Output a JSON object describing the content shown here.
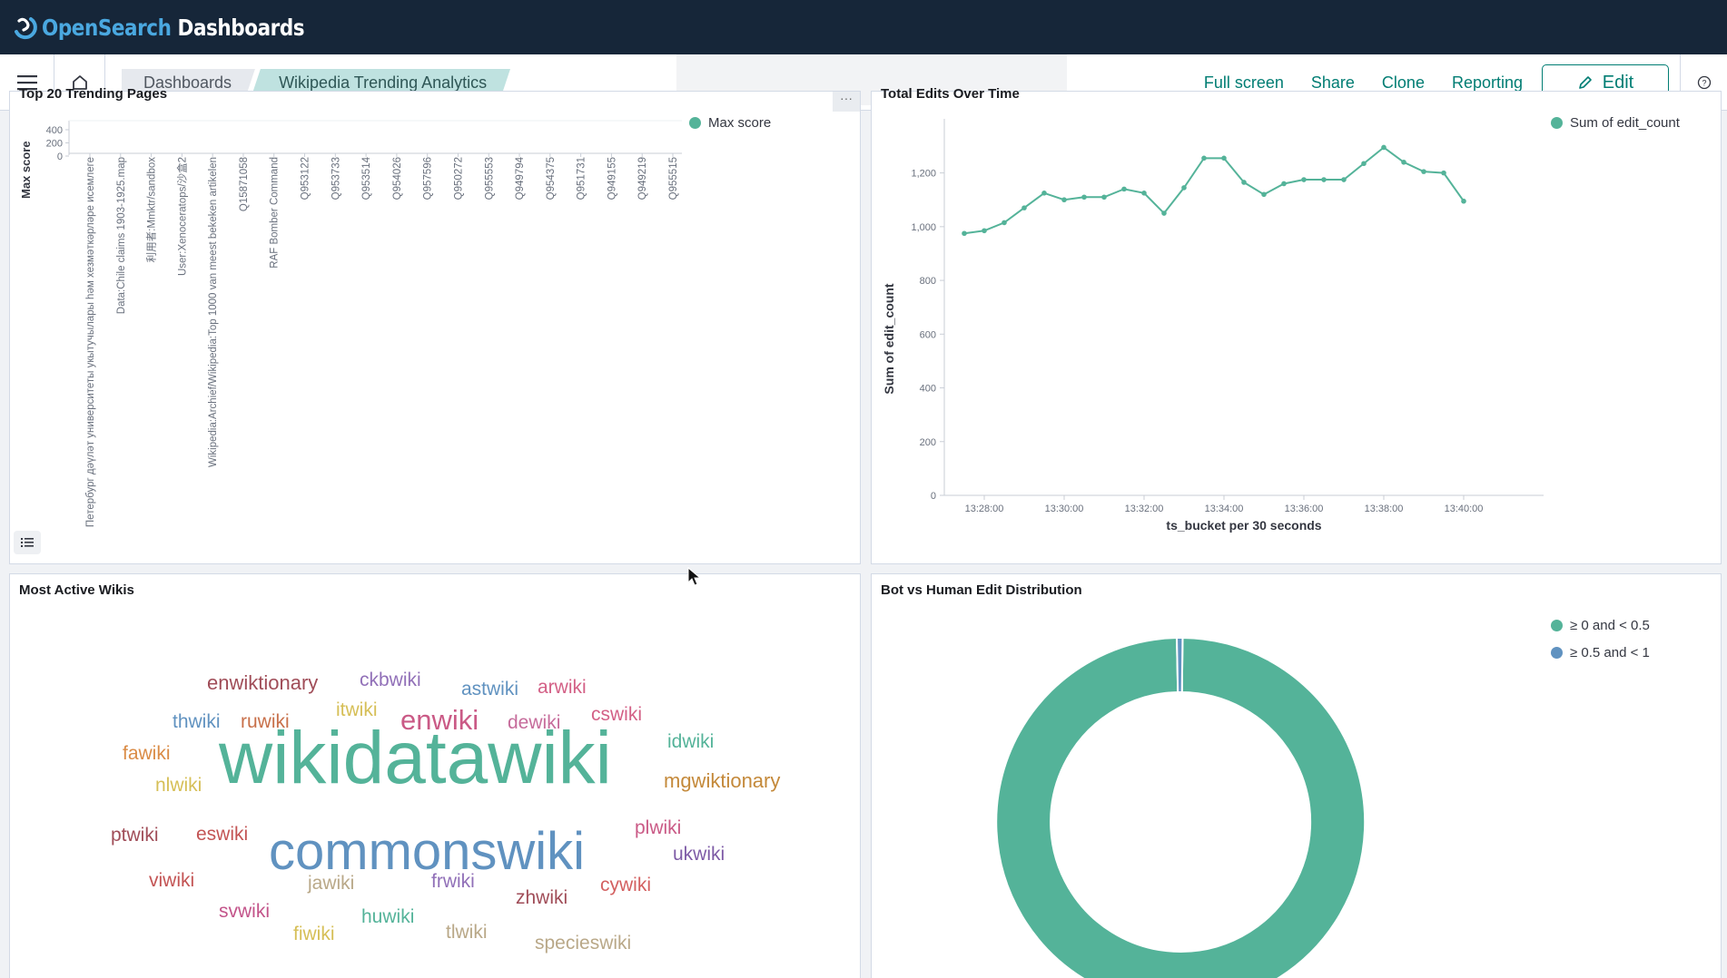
{
  "app": {
    "name_part1": "Open",
    "name_part2": "Search",
    "name_part3": " Dashboards",
    "logo_icon": "opensearch-logo"
  },
  "nav": {
    "menu_icon": "hamburger-menu-icon",
    "home_icon": "home-icon",
    "breadcrumbs": [
      {
        "label": "Dashboards"
      },
      {
        "label": "Wikipedia Trending Analytics"
      }
    ],
    "actions": {
      "full_screen": "Full screen",
      "share": "Share",
      "clone": "Clone",
      "reporting": "Reporting",
      "edit": "Edit"
    },
    "help_icon": "help-icon"
  },
  "panels": {
    "top_pages": {
      "title": "Top 20 Trending Pages",
      "legend": "Max score",
      "chart_data": {
        "type": "bar",
        "ylabel": "Max score",
        "yticks": [
          "400",
          "200",
          "0"
        ],
        "categories": [
          "Петербург дәүләт университеты укытучылары һәм хезмәткәрләре исемлеге",
          "Data:Chile claims 1903-1925.map",
          "利用者:Mmktr/sandbox",
          "User:Xenoceratops/沙盒2",
          "Wikipedia:Archief/Wikipedia:Top 1000 van meest bekeken artikelen",
          "Q15871058",
          "RAF Bomber Command",
          "Q953122",
          "Q953733",
          "Q953514",
          "Q954026",
          "Q957596",
          "Q950272",
          "Q955553",
          "Q949794",
          "Q954375",
          "Q951731",
          "Q949155",
          "Q949219",
          "Q955515"
        ]
      }
    },
    "edits_over_time": {
      "title": "Total Edits Over Time",
      "legend": "Sum of edit_count",
      "chart_data": {
        "type": "line",
        "xlabel": "ts_bucket per 30 seconds",
        "ylabel": "Sum of edit_count",
        "ylim": [
          0,
          1300
        ],
        "yticks": [
          "0",
          "200",
          "400",
          "600",
          "800",
          "1,000",
          "1,200"
        ],
        "xticks": [
          "13:28:00",
          "13:30:00",
          "13:32:00",
          "13:34:00",
          "13:36:00",
          "13:38:00",
          "13:40:00"
        ],
        "series": [
          {
            "name": "Sum of edit_count",
            "x": [
              "13:27:30",
              "13:28:00",
              "13:28:30",
              "13:29:00",
              "13:29:30",
              "13:30:00",
              "13:30:30",
              "13:31:00",
              "13:31:30",
              "13:32:00",
              "13:32:30",
              "13:33:00",
              "13:33:30",
              "13:34:00",
              "13:34:30",
              "13:35:00",
              "13:35:30",
              "13:36:00",
              "13:36:30",
              "13:37:00",
              "13:37:30",
              "13:38:00",
              "13:38:30",
              "13:39:00",
              "13:39:30",
              "13:40:00"
            ],
            "values": [
              975,
              985,
              1015,
              1070,
              1125,
              1100,
              1110,
              1110,
              1140,
              1125,
              1050,
              1145,
              1255,
              1255,
              1165,
              1120,
              1160,
              1175,
              1175,
              1175,
              1235,
              1295,
              1240,
              1205,
              1200,
              1095
            ]
          }
        ]
      }
    },
    "active_wikis": {
      "title": "Most Active Wikis",
      "words": [
        {
          "text": "wikidatawiki",
          "color": "#54b399"
        },
        {
          "text": "commonswiki",
          "color": "#6092c0"
        },
        {
          "text": "enwiki",
          "color": "#ca5a86"
        },
        {
          "text": "enwiktionary",
          "color": "#a04d58"
        },
        {
          "text": "ckbwiki",
          "color": "#9170b8"
        },
        {
          "text": "astwiki",
          "color": "#6092c0"
        },
        {
          "text": "arwiki",
          "color": "#d36086"
        },
        {
          "text": "thwiki",
          "color": "#6092c0"
        },
        {
          "text": "ruwiki",
          "color": "#c8704a"
        },
        {
          "text": "itwiki",
          "color": "#d6bf57"
        },
        {
          "text": "dewiki",
          "color": "#c66c9b"
        },
        {
          "text": "cswiki",
          "color": "#d36086"
        },
        {
          "text": "idwiki",
          "color": "#54b399"
        },
        {
          "text": "fawiki",
          "color": "#da8b45"
        },
        {
          "text": "mgwiktionary",
          "color": "#c4893a"
        },
        {
          "text": "nlwiki",
          "color": "#d6bf57"
        },
        {
          "text": "ptwiki",
          "color": "#a04d58"
        },
        {
          "text": "eswiki",
          "color": "#c35454"
        },
        {
          "text": "plwiki",
          "color": "#ca5a86"
        },
        {
          "text": "ukwiki",
          "color": "#7e5ba6"
        },
        {
          "text": "viwiki",
          "color": "#c35454"
        },
        {
          "text": "jawiki",
          "color": "#b9a888"
        },
        {
          "text": "frwiki",
          "color": "#9170b8"
        },
        {
          "text": "zhwiki",
          "color": "#a04d58"
        },
        {
          "text": "cywiki",
          "color": "#d36060"
        },
        {
          "text": "svwiki",
          "color": "#c3548a"
        },
        {
          "text": "huwiki",
          "color": "#54b399"
        },
        {
          "text": "fiwiki",
          "color": "#d6bf57"
        },
        {
          "text": "tlwiki",
          "color": "#b9a888"
        },
        {
          "text": "specieswiki",
          "color": "#b9a888"
        }
      ]
    },
    "bot_vs_human": {
      "title": "Bot vs Human Edit Distribution",
      "legend": [
        {
          "label": "≥ 0 and < 0.5",
          "color": "#54b399"
        },
        {
          "label": "≥ 0.5 and < 1",
          "color": "#6092c0"
        }
      ],
      "chart_data": {
        "type": "pie",
        "categories": [
          "≥ 0 and < 0.5",
          "≥ 0.5 and < 1"
        ],
        "values": [
          0.995,
          0.005
        ]
      }
    }
  },
  "colors": {
    "accent": "#017d73",
    "series": "#54b399",
    "topbar": "#162639"
  }
}
